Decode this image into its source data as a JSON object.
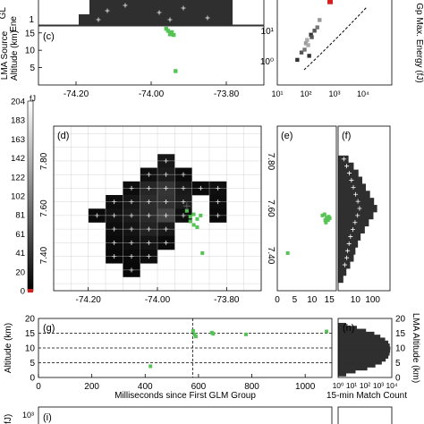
{
  "panel_tags": {
    "c": "(c)",
    "d": "(d)",
    "e": "(e)",
    "f": "(f)",
    "g": "(g)",
    "h": "(h)",
    "i": "(i)"
  },
  "labels": {
    "top_left_cut": "GL\nEne",
    "lma_source_altitude": "LMA Source\nAltitude (km)",
    "colorbar_unit": "fJ",
    "gp_max_energy": "Gp Max. Energy (fJ)",
    "altitude_km": "Altitude (km)",
    "ms_since": "Milliseconds since First GLM Group",
    "lma_altitude": "LMA Altitude (km)",
    "match_count": "15-min Match Count",
    "bottom_cut": "(fJ)"
  },
  "colors": {
    "lma_green": "#55c455",
    "glm_dark": "#2f2f2f",
    "highlight_red": "#d62020"
  },
  "chart_data": [
    {
      "id": "c",
      "type": "scatter",
      "xlim": [
        -74.3,
        -73.7
      ],
      "ylim": [
        0,
        17
      ],
      "x_ticks": [
        "-74.20",
        "-74.00",
        "-73.80"
      ],
      "y_ticks": [
        "15",
        "10",
        "5"
      ],
      "ylabel": "LMA Source Altitude (km)",
      "points": [
        [
          -73.96,
          16.2
        ],
        [
          -73.955,
          15.6
        ],
        [
          -73.945,
          15.2
        ],
        [
          -73.95,
          14.6
        ],
        [
          -73.94,
          14.4
        ],
        [
          -73.935,
          4.0
        ]
      ]
    },
    {
      "id": "d",
      "type": "heatmap",
      "xlim": [
        -74.3,
        -73.7
      ],
      "ylim": [
        7.25,
        7.95
      ],
      "x_ticks": [
        "-74.20",
        "-74.00",
        "-73.80"
      ],
      "y_ticks": [
        "7.80",
        "7.60",
        "7.40"
      ],
      "colorbar": {
        "min": 0,
        "max": 204,
        "unit": "fJ",
        "ticks": [
          "204",
          "183",
          "163",
          "142",
          "122",
          "102",
          "81",
          "61",
          "41",
          "20",
          "0"
        ]
      },
      "cells": [
        {
          "x": -73.975,
          "y": 7.802,
          "v": 18
        },
        {
          "x": -74.025,
          "y": 7.744,
          "v": 12
        },
        {
          "x": -73.975,
          "y": 7.744,
          "v": 22
        },
        {
          "x": -73.925,
          "y": 7.744,
          "v": 8
        },
        {
          "x": -74.075,
          "y": 7.686,
          "v": 10
        },
        {
          "x": -74.025,
          "y": 7.686,
          "v": 30
        },
        {
          "x": -73.975,
          "y": 7.686,
          "v": 42
        },
        {
          "x": -73.925,
          "y": 7.686,
          "v": 20
        },
        {
          "x": -73.875,
          "y": 7.686,
          "v": 8
        },
        {
          "x": -73.825,
          "y": 7.686,
          "v": 12
        },
        {
          "x": -74.125,
          "y": 7.628,
          "v": 10
        },
        {
          "x": -74.075,
          "y": 7.628,
          "v": 18
        },
        {
          "x": -74.025,
          "y": 7.628,
          "v": 35
        },
        {
          "x": -73.975,
          "y": 7.628,
          "v": 40
        },
        {
          "x": -73.925,
          "y": 7.628,
          "v": 22
        },
        {
          "x": -73.825,
          "y": 7.628,
          "v": 10
        },
        {
          "x": -74.175,
          "y": 7.57,
          "v": 8
        },
        {
          "x": -74.125,
          "y": 7.57,
          "v": 14
        },
        {
          "x": -74.075,
          "y": 7.57,
          "v": 22
        },
        {
          "x": -74.025,
          "y": 7.57,
          "v": 34
        },
        {
          "x": -73.975,
          "y": 7.57,
          "v": 55
        },
        {
          "x": -73.925,
          "y": 7.57,
          "v": 12
        },
        {
          "x": -73.825,
          "y": 7.57,
          "v": 8
        },
        {
          "x": -74.125,
          "y": 7.512,
          "v": 10
        },
        {
          "x": -74.075,
          "y": 7.512,
          "v": 16
        },
        {
          "x": -74.025,
          "y": 7.512,
          "v": 28
        },
        {
          "x": -73.975,
          "y": 7.512,
          "v": 20
        },
        {
          "x": -74.125,
          "y": 7.454,
          "v": 8
        },
        {
          "x": -74.075,
          "y": 7.454,
          "v": 12
        },
        {
          "x": -74.025,
          "y": 7.454,
          "v": 16
        },
        {
          "x": -73.975,
          "y": 7.454,
          "v": 8
        },
        {
          "x": -74.125,
          "y": 7.396,
          "v": 6
        },
        {
          "x": -74.075,
          "y": 7.396,
          "v": 8
        },
        {
          "x": -74.025,
          "y": 7.396,
          "v": 10
        },
        {
          "x": -74.075,
          "y": 7.338,
          "v": 6
        }
      ],
      "lma_points": [
        [
          -73.915,
          7.59
        ],
        [
          -73.905,
          7.565
        ],
        [
          -73.895,
          7.575
        ],
        [
          -73.885,
          7.555
        ],
        [
          -73.905,
          7.545
        ],
        [
          -73.875,
          7.57
        ],
        [
          -73.895,
          7.53
        ],
        [
          -73.885,
          7.52
        ],
        [
          -73.87,
          7.41
        ]
      ],
      "marker": [
        -73.915,
        7.61
      ]
    },
    {
      "id": "e",
      "type": "scatter",
      "xlim": [
        0,
        17
      ],
      "ylim": [
        7.25,
        7.95
      ],
      "x_ticks": [
        "0",
        "5",
        "10",
        "15"
      ],
      "points": [
        [
          13.0,
          7.57
        ],
        [
          13.6,
          7.575
        ],
        [
          14.2,
          7.56
        ],
        [
          14.6,
          7.55
        ],
        [
          14.0,
          7.54
        ],
        [
          14.8,
          7.565
        ],
        [
          13.8,
          7.55
        ],
        [
          15.1,
          7.558
        ],
        [
          3.0,
          7.41
        ]
      ]
    },
    {
      "id": "f",
      "type": "bar",
      "orientation": "horizontal",
      "x_scale": "log",
      "xlim": [
        1,
        1000
      ],
      "ylim": [
        7.25,
        7.95
      ],
      "x_ticks": [
        "10",
        "100"
      ],
      "bins": [
        [
          7.3,
          2
        ],
        [
          7.33,
          3
        ],
        [
          7.36,
          5
        ],
        [
          7.39,
          8
        ],
        [
          7.42,
          10
        ],
        [
          7.45,
          14
        ],
        [
          7.48,
          20
        ],
        [
          7.51,
          35
        ],
        [
          7.54,
          60
        ],
        [
          7.57,
          110
        ],
        [
          7.6,
          180
        ],
        [
          7.63,
          120
        ],
        [
          7.66,
          70
        ],
        [
          7.69,
          40
        ],
        [
          7.72,
          25
        ],
        [
          7.75,
          15
        ],
        [
          7.78,
          8
        ],
        [
          7.81,
          4
        ]
      ]
    },
    {
      "id": "g",
      "type": "scatter",
      "xlim": [
        0,
        1100
      ],
      "ylim": [
        0,
        20
      ],
      "x_ticks": [
        "0",
        "200",
        "400",
        "600",
        "800",
        "1000"
      ],
      "y_ticks": [
        "20",
        "15",
        "10",
        "5",
        "0"
      ],
      "xlabel": "Milliseconds since First GLM Group",
      "ylabel": "Altitude (km)",
      "vline": 578,
      "hlines": [
        15,
        10,
        5
      ],
      "points": [
        [
          420,
          3.8
        ],
        [
          580,
          15.8
        ],
        [
          585,
          14.6
        ],
        [
          590,
          13.9
        ],
        [
          650,
          15.2
        ],
        [
          655,
          14.8
        ],
        [
          778,
          14.6
        ],
        [
          1080,
          15.6
        ]
      ]
    },
    {
      "id": "h",
      "type": "bar",
      "orientation": "horizontal",
      "x_scale": "log",
      "xlim": [
        1,
        10000
      ],
      "ylim": [
        0,
        20
      ],
      "x_ticks": [
        "10⁰",
        "10¹",
        "10²",
        "10³",
        "10⁴"
      ],
      "y_ticks": [
        "20",
        "15",
        "10",
        "5",
        "0"
      ],
      "xlabel": "15-min Match Count",
      "ylabel": "LMA Altitude (km)",
      "bins": [
        [
          1,
          4
        ],
        [
          2,
          20
        ],
        [
          3,
          150
        ],
        [
          4,
          600
        ],
        [
          5,
          1800
        ],
        [
          6,
          3500
        ],
        [
          7,
          5500
        ],
        [
          8,
          6800
        ],
        [
          9,
          7500
        ],
        [
          10,
          7800
        ],
        [
          11,
          7000
        ],
        [
          12,
          5500
        ],
        [
          13,
          3200
        ],
        [
          14,
          1400
        ],
        [
          15,
          500
        ],
        [
          16,
          120
        ],
        [
          17,
          25
        ],
        [
          18,
          4
        ]
      ]
    },
    {
      "id": "top_right",
      "type": "scatter",
      "x_scale": "log",
      "y_scale": "log",
      "xlim": [
        10,
        100000
      ],
      "ylim": [
        0.5,
        60
      ],
      "x_ticks": [
        "10¹",
        "10²",
        "10³",
        "10⁴"
      ],
      "y_ticks": [
        "10¹",
        "10⁰"
      ],
      "ylabel": "Gp Max. Energy (fJ)",
      "points": [
        [
          50,
          2
        ],
        [
          70,
          3
        ],
        [
          90,
          3.5
        ],
        [
          100,
          5
        ],
        [
          120,
          4.5
        ],
        [
          150,
          8
        ],
        [
          200,
          10
        ],
        [
          250,
          12
        ],
        [
          300,
          18
        ],
        [
          110,
          6
        ],
        [
          130,
          2.5
        ],
        [
          160,
          7
        ]
      ],
      "highlight": [
        700,
        50
      ]
    },
    {
      "id": "top_left",
      "type": "heatmap",
      "x_ticks": [],
      "y_ticks": [
        "1"
      ]
    }
  ]
}
